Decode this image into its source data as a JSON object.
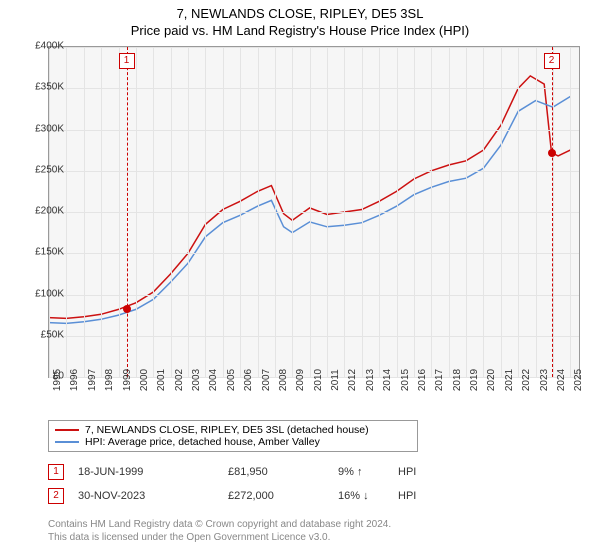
{
  "title_main": "7, NEWLANDS CLOSE, RIPLEY, DE5 3SL",
  "title_sub": "Price paid vs. HM Land Registry's House Price Index (HPI)",
  "chart": {
    "type": "line",
    "plot_bg": "#f6f6f6",
    "grid_color": "#e4e4e4",
    "border_color": "#999999",
    "x_years": [
      1995,
      1996,
      1997,
      1998,
      1999,
      2000,
      2001,
      2002,
      2003,
      2004,
      2005,
      2006,
      2007,
      2008,
      2009,
      2010,
      2011,
      2012,
      2013,
      2014,
      2015,
      2016,
      2017,
      2018,
      2019,
      2020,
      2021,
      2022,
      2023,
      2024,
      2025
    ],
    "y_ticks": [
      0,
      50000,
      100000,
      150000,
      200000,
      250000,
      300000,
      350000,
      400000
    ],
    "y_tick_labels": [
      "£0",
      "£50K",
      "£100K",
      "£150K",
      "£200K",
      "£250K",
      "£300K",
      "£350K",
      "£400K"
    ],
    "ylim": [
      0,
      400000
    ],
    "xlim": [
      1995,
      2025.5
    ],
    "series": [
      {
        "name": "7, NEWLANDS CLOSE, RIPLEY, DE5 3SL (detached house)",
        "color": "#cc1111",
        "x": [
          1995,
          1996,
          1997,
          1998,
          1999,
          2000,
          2001,
          2002,
          2003,
          2004,
          2005,
          2006,
          2007,
          2007.8,
          2008.5,
          2009,
          2010,
          2011,
          2012,
          2013,
          2014,
          2015,
          2016,
          2017,
          2018,
          2019,
          2020,
          2021,
          2022,
          2022.7,
          2023.5,
          2023.92,
          2024.3,
          2025
        ],
        "y": [
          72000,
          71000,
          73000,
          76000,
          82000,
          90000,
          103000,
          125000,
          150000,
          185000,
          203000,
          213000,
          225000,
          232000,
          198000,
          190000,
          205000,
          197000,
          200000,
          203000,
          213000,
          225000,
          240000,
          250000,
          257000,
          262000,
          275000,
          305000,
          350000,
          365000,
          355000,
          272000,
          268000,
          275000
        ]
      },
      {
        "name": "HPI: Average price, detached house, Amber Valley",
        "color": "#5a8fd6",
        "x": [
          1995,
          1996,
          1997,
          1998,
          1999,
          2000,
          2001,
          2002,
          2003,
          2004,
          2005,
          2006,
          2007,
          2007.8,
          2008.5,
          2009,
          2010,
          2011,
          2012,
          2013,
          2014,
          2015,
          2016,
          2017,
          2018,
          2019,
          2020,
          2021,
          2022,
          2023,
          2024,
          2025
        ],
        "y": [
          66000,
          65000,
          67000,
          70000,
          75000,
          82000,
          94000,
          115000,
          138000,
          170000,
          187000,
          196000,
          207000,
          214000,
          182000,
          175000,
          188000,
          182000,
          184000,
          187000,
          196000,
          207000,
          221000,
          230000,
          237000,
          241000,
          253000,
          281000,
          322000,
          335000,
          327000,
          340000
        ]
      }
    ],
    "markers": [
      {
        "id": "1",
        "x": 1999.46,
        "y_box_top": -6,
        "dot_y": 82000
      },
      {
        "id": "2",
        "x": 2023.92,
        "y_box_top": -6,
        "dot_y": 272000
      }
    ]
  },
  "legend": {
    "items": [
      {
        "color": "#cc1111",
        "label": "7, NEWLANDS CLOSE, RIPLEY, DE5 3SL (detached house)"
      },
      {
        "color": "#5a8fd6",
        "label": "HPI: Average price, detached house, Amber Valley"
      }
    ]
  },
  "transactions": [
    {
      "id": "1",
      "date": "18-JUN-1999",
      "price": "£81,950",
      "pct": "9%",
      "arrow": "↑",
      "suffix": "HPI"
    },
    {
      "id": "2",
      "date": "30-NOV-2023",
      "price": "£272,000",
      "pct": "16%",
      "arrow": "↓",
      "suffix": "HPI"
    }
  ],
  "footer_line1": "Contains HM Land Registry data © Crown copyright and database right 2024.",
  "footer_line2": "This data is licensed under the Open Government Licence v3.0."
}
